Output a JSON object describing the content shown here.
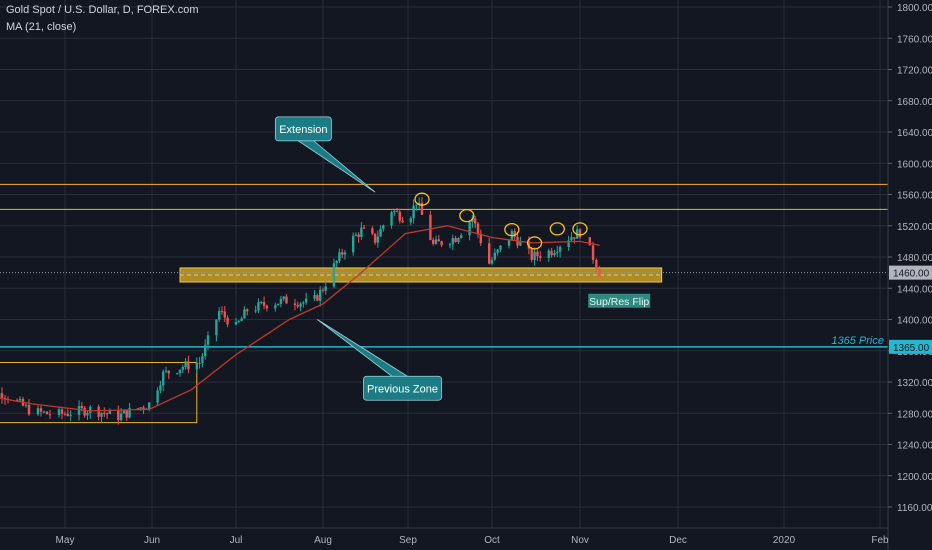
{
  "header": {
    "title": "Gold Spot / U.S. Dollar, D, FOREX.com",
    "indicator": "MA (21, close)"
  },
  "colors": {
    "background": "#131722",
    "grid": "#2a2e39",
    "axis_text": "#b2b5be",
    "candle_up": "#26a69a",
    "candle_down": "#ef5350",
    "ma_line": "#c0392b",
    "resistance": "#f0b429",
    "zone_fill": "#c9a227",
    "zone_border": "#f5c542",
    "price_line": "#22b8cf",
    "callout": "#1c7c86",
    "marker": "#f5c518",
    "flip_label_bg": "#2d8a82"
  },
  "chart_data": {
    "type": "candlestick",
    "title": "Gold Spot / U.S. Dollar, D, FOREX.com",
    "xlabel": "",
    "ylabel": "",
    "ylim": [
      1130,
      1810
    ],
    "y_ticks": [
      1800,
      1760,
      1720,
      1680,
      1640,
      1600,
      1560,
      1520,
      1480,
      1440,
      1400,
      1360,
      1320,
      1280,
      1240,
      1200,
      1160
    ],
    "x_ticks": [
      {
        "label": "May",
        "date": "2019-05-01"
      },
      {
        "label": "Jun",
        "date": "2019-06-01"
      },
      {
        "label": "Jul",
        "date": "2019-07-01"
      },
      {
        "label": "Aug",
        "date": "2019-08-01"
      },
      {
        "label": "Sep",
        "date": "2019-09-01"
      },
      {
        "label": "Oct",
        "date": "2019-10-01"
      },
      {
        "label": "Nov",
        "date": "2019-11-01"
      },
      {
        "label": "Dec",
        "date": "2019-12-01"
      },
      {
        "label": "2020",
        "date": "2020-01-01"
      },
      {
        "label": "Feb",
        "date": "2020-02-01"
      }
    ],
    "x_range": [
      "2019-04-01",
      "2020-02-01"
    ],
    "price_path": [
      [
        "2019-04-01",
        1296
      ],
      [
        "2019-04-10",
        1306
      ],
      [
        "2019-04-20",
        1282
      ],
      [
        "2019-04-28",
        1278
      ],
      [
        "2019-05-10",
        1285
      ],
      [
        "2019-05-20",
        1276
      ],
      [
        "2019-05-31",
        1292
      ],
      [
        "2019-06-05",
        1330
      ],
      [
        "2019-06-12",
        1340
      ],
      [
        "2019-06-18",
        1345
      ],
      [
        "2019-06-25",
        1410
      ],
      [
        "2019-07-01",
        1390
      ],
      [
        "2019-07-05",
        1412
      ],
      [
        "2019-07-12",
        1420
      ],
      [
        "2019-07-20",
        1425
      ],
      [
        "2019-07-28",
        1420
      ],
      [
        "2019-08-01",
        1440
      ],
      [
        "2019-08-05",
        1468
      ],
      [
        "2019-08-10",
        1497
      ],
      [
        "2019-08-15",
        1514
      ],
      [
        "2019-08-20",
        1502
      ],
      [
        "2019-08-26",
        1540
      ],
      [
        "2019-09-01",
        1527
      ],
      [
        "2019-09-04",
        1552
      ],
      [
        "2019-09-10",
        1495
      ],
      [
        "2019-09-18",
        1505
      ],
      [
        "2019-09-24",
        1530
      ],
      [
        "2019-09-30",
        1472
      ],
      [
        "2019-10-08",
        1510
      ],
      [
        "2019-10-15",
        1480
      ],
      [
        "2019-10-22",
        1488
      ],
      [
        "2019-10-28",
        1505
      ],
      [
        "2019-11-01",
        1512
      ],
      [
        "2019-11-05",
        1480
      ],
      [
        "2019-11-07",
        1460
      ]
    ],
    "moving_average": {
      "name": "MA (21, close)",
      "points": [
        [
          "2019-04-01",
          1305
        ],
        [
          "2019-04-20",
          1292
        ],
        [
          "2019-05-10",
          1283
        ],
        [
          "2019-05-31",
          1285
        ],
        [
          "2019-06-15",
          1310
        ],
        [
          "2019-07-01",
          1355
        ],
        [
          "2019-07-20",
          1400
        ],
        [
          "2019-08-01",
          1420
        ],
        [
          "2019-08-15",
          1460
        ],
        [
          "2019-08-31",
          1510
        ],
        [
          "2019-09-15",
          1520
        ],
        [
          "2019-10-01",
          1505
        ],
        [
          "2019-10-15",
          1498
        ],
        [
          "2019-11-01",
          1500
        ],
        [
          "2019-11-07",
          1495
        ]
      ]
    },
    "horizontal_levels": [
      {
        "kind": "resistance",
        "price": 1573
      },
      {
        "kind": "resistance",
        "price": 1541
      },
      {
        "kind": "price-line",
        "price": 1365,
        "label": "1365 Price",
        "axis_label": "1365.00"
      },
      {
        "kind": "last-price",
        "price": 1460,
        "axis_label": "1460.00"
      }
    ],
    "zones": [
      {
        "kind": "previous-range",
        "date_start": "2019-03-31",
        "date_end": "2019-06-17",
        "price_low": 1268,
        "price_high": 1345
      },
      {
        "kind": "sup-res-zone",
        "date_start": "2019-06-11",
        "date_end": "2019-11-26",
        "price_low": 1448,
        "price_high": 1466
      }
    ],
    "markers": [
      {
        "date": "2019-09-06",
        "price": 1554
      },
      {
        "date": "2019-09-22",
        "price": 1533
      },
      {
        "date": "2019-10-08",
        "price": 1515
      },
      {
        "date": "2019-10-16",
        "price": 1498
      },
      {
        "date": "2019-10-24",
        "price": 1516
      },
      {
        "date": "2019-11-01",
        "price": 1516
      }
    ],
    "annotations": [
      {
        "text": "Extension",
        "date": "2019-07-25",
        "price": 1644
      },
      {
        "text": "Previous Zone",
        "date": "2019-08-30",
        "price": 1312
      },
      {
        "text": "Sup/Res Flip",
        "date": "2019-11-13",
        "price": 1424
      },
      {
        "text": "1365 Price",
        "date": "2020-01-22",
        "price": 1372
      }
    ]
  }
}
